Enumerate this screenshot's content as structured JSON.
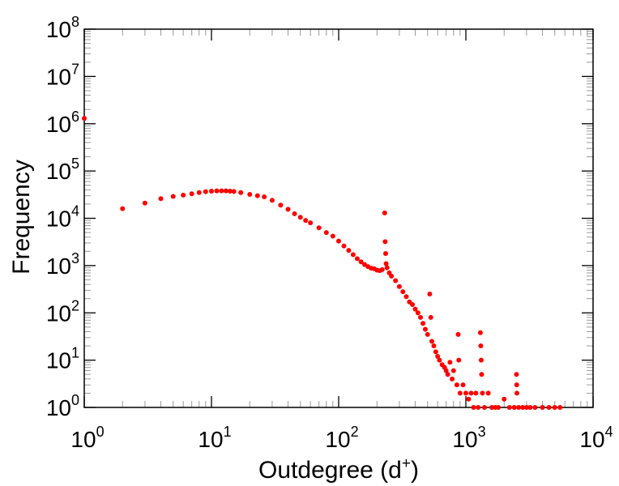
{
  "chart_data": {
    "type": "scatter",
    "x_scale": "log",
    "y_scale": "log",
    "xlim": [
      1,
      10000
    ],
    "ylim": [
      1,
      100000000
    ],
    "xlabel": {
      "main": "Outdegree (d",
      "sup": "+",
      "close": ")"
    },
    "ylabel": "Frequency",
    "x_ticks": [
      {
        "base": "10",
        "exp": "0"
      },
      {
        "base": "10",
        "exp": "1"
      },
      {
        "base": "10",
        "exp": "2"
      },
      {
        "base": "10",
        "exp": "3"
      },
      {
        "base": "10",
        "exp": "4"
      }
    ],
    "y_ticks": [
      {
        "base": "10",
        "exp": "0"
      },
      {
        "base": "10",
        "exp": "1"
      },
      {
        "base": "10",
        "exp": "2"
      },
      {
        "base": "10",
        "exp": "3"
      },
      {
        "base": "10",
        "exp": "4"
      },
      {
        "base": "10",
        "exp": "5"
      },
      {
        "base": "10",
        "exp": "6"
      },
      {
        "base": "10",
        "exp": "7"
      },
      {
        "base": "10",
        "exp": "8"
      }
    ],
    "marker_color": "#ff0000",
    "grid": false,
    "series": [
      {
        "points": [
          [
            1,
            1300000
          ],
          [
            2,
            16000
          ],
          [
            3,
            21000
          ],
          [
            4,
            26000
          ],
          [
            5,
            29000
          ],
          [
            6,
            31000
          ],
          [
            7,
            33000
          ],
          [
            8,
            35000
          ],
          [
            9,
            36500
          ],
          [
            10,
            37500
          ],
          [
            11,
            38000
          ],
          [
            12,
            38000
          ],
          [
            13,
            38000
          ],
          [
            14,
            37500
          ],
          [
            15,
            37000
          ],
          [
            17,
            35000
          ],
          [
            20,
            32000
          ],
          [
            23,
            30000
          ],
          [
            26,
            28500
          ],
          [
            30,
            24000
          ],
          [
            35,
            19000
          ],
          [
            40,
            15500
          ],
          [
            45,
            12500
          ],
          [
            50,
            10500
          ],
          [
            55,
            9000
          ],
          [
            60,
            8000
          ],
          [
            70,
            6300
          ],
          [
            80,
            5000
          ],
          [
            90,
            4200
          ],
          [
            100,
            3300
          ],
          [
            110,
            2600
          ],
          [
            120,
            2100
          ],
          [
            130,
            1700
          ],
          [
            140,
            1400
          ],
          [
            150,
            1200
          ],
          [
            160,
            1050
          ],
          [
            170,
            950
          ],
          [
            180,
            880
          ],
          [
            190,
            860
          ],
          [
            200,
            800
          ],
          [
            210,
            780
          ],
          [
            220,
            820
          ],
          [
            230,
            13000
          ],
          [
            232,
            3200
          ],
          [
            234,
            1800
          ],
          [
            236,
            1100
          ],
          [
            240,
            900
          ],
          [
            250,
            700
          ],
          [
            260,
            600
          ],
          [
            280,
            480
          ],
          [
            300,
            360
          ],
          [
            320,
            280
          ],
          [
            340,
            220
          ],
          [
            360,
            170
          ],
          [
            380,
            150
          ],
          [
            400,
            120
          ],
          [
            420,
            100
          ],
          [
            440,
            80
          ],
          [
            460,
            60
          ],
          [
            480,
            45
          ],
          [
            500,
            35
          ],
          [
            520,
            250
          ],
          [
            530,
            80
          ],
          [
            540,
            25
          ],
          [
            560,
            20
          ],
          [
            580,
            15
          ],
          [
            600,
            12
          ],
          [
            620,
            10
          ],
          [
            650,
            8
          ],
          [
            680,
            7
          ],
          [
            700,
            6
          ],
          [
            720,
            5
          ],
          [
            750,
            9
          ],
          [
            780,
            4
          ],
          [
            800,
            6
          ],
          [
            850,
            3
          ],
          [
            870,
            35
          ],
          [
            880,
            10
          ],
          [
            900,
            2
          ],
          [
            950,
            3
          ],
          [
            1000,
            2
          ],
          [
            1050,
            1.5
          ],
          [
            1100,
            2
          ],
          [
            1150,
            1
          ],
          [
            1200,
            2
          ],
          [
            1250,
            1
          ],
          [
            1300,
            38
          ],
          [
            1310,
            20
          ],
          [
            1320,
            10
          ],
          [
            1330,
            5
          ],
          [
            1350,
            2
          ],
          [
            1400,
            1
          ],
          [
            1500,
            2
          ],
          [
            1600,
            1
          ],
          [
            1700,
            1
          ],
          [
            1800,
            1
          ],
          [
            2000,
            1.5
          ],
          [
            2200,
            1
          ],
          [
            2400,
            1
          ],
          [
            2500,
            5
          ],
          [
            2510,
            3
          ],
          [
            2520,
            2
          ],
          [
            2600,
            1
          ],
          [
            2800,
            1
          ],
          [
            3000,
            1
          ],
          [
            3200,
            1
          ],
          [
            3500,
            1
          ],
          [
            4000,
            1
          ],
          [
            4500,
            1
          ],
          [
            5000,
            1
          ],
          [
            5500,
            1
          ]
        ]
      }
    ]
  }
}
